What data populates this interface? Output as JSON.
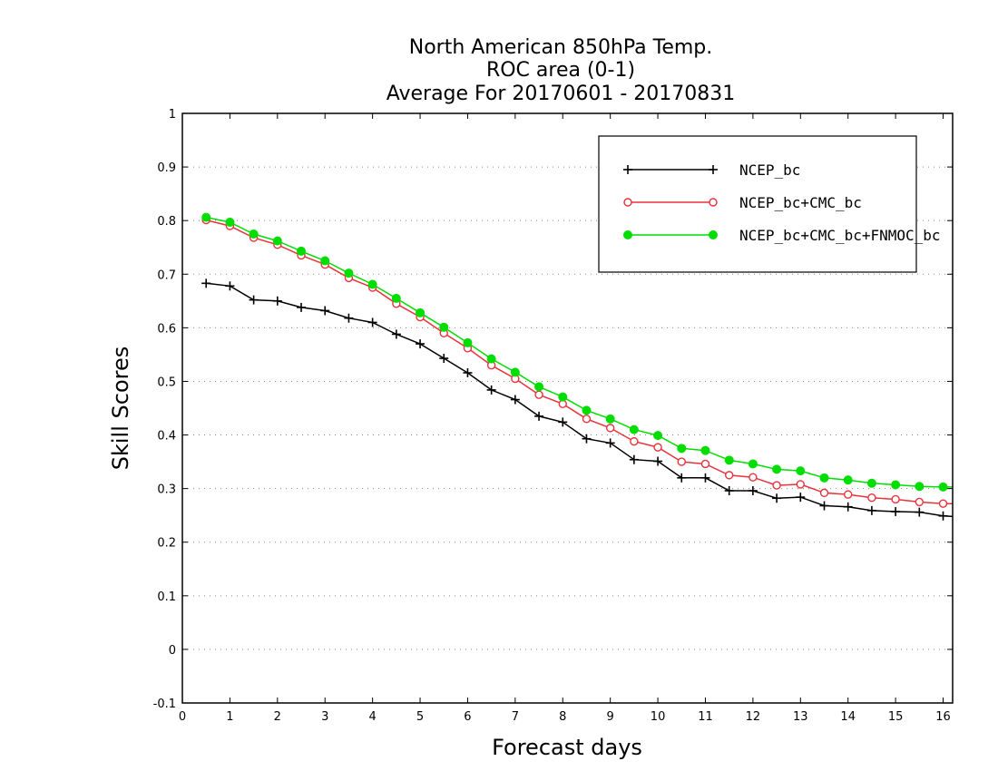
{
  "chart_data": {
    "type": "line",
    "title": [
      "North American 850hPa Temp.",
      "ROC area (0-1)",
      "Average For 20170601 - 20170831"
    ],
    "xlabel": "Forecast days",
    "ylabel": "Skill Scores",
    "xlim": [
      0,
      16.2
    ],
    "ylim": [
      -0.1,
      1
    ],
    "xticks": [
      0,
      1,
      2,
      3,
      4,
      5,
      6,
      7,
      8,
      9,
      10,
      11,
      12,
      13,
      14,
      15,
      16
    ],
    "yticks": [
      -0.1,
      0,
      0.1,
      0.2,
      0.3,
      0.4,
      0.5,
      0.6,
      0.7,
      0.8,
      0.9,
      1
    ],
    "ytick_labels": [
      "-0.1",
      "0",
      "0.1",
      "0.2",
      "0.3",
      "0.4",
      "0.5",
      "0.6",
      "0.7",
      "0.8",
      "0.9",
      "1"
    ],
    "grid": "horizontal dotted",
    "legend_position": "top-right",
    "x": [
      0.5,
      1,
      1.5,
      2,
      2.5,
      3,
      3.5,
      4,
      4.5,
      5,
      5.5,
      6,
      6.5,
      7,
      7.5,
      8,
      8.5,
      9,
      9.5,
      10,
      10.5,
      11,
      11.5,
      12,
      12.5,
      13,
      13.5,
      14,
      14.5,
      15,
      15.5,
      16,
      16.2
    ],
    "series": [
      {
        "name": "NCEP_bc",
        "color": "#000000",
        "marker": "plus",
        "values": [
          0.683,
          0.678,
          0.652,
          0.65,
          0.638,
          0.632,
          0.618,
          0.61,
          0.588,
          0.57,
          0.543,
          0.516,
          0.484,
          0.466,
          0.435,
          0.424,
          0.393,
          0.385,
          0.354,
          0.351,
          0.32,
          0.32,
          0.296,
          0.296,
          0.282,
          0.284,
          0.268,
          0.266,
          0.259,
          0.257,
          0.256,
          0.249,
          0.248
        ]
      },
      {
        "name": "NCEP_bc+CMC_bc",
        "color": "#e8323c",
        "marker": "open-circle",
        "values": [
          0.801,
          0.79,
          0.768,
          0.755,
          0.735,
          0.718,
          0.693,
          0.675,
          0.645,
          0.62,
          0.59,
          0.562,
          0.53,
          0.505,
          0.475,
          0.458,
          0.43,
          0.413,
          0.388,
          0.377,
          0.35,
          0.346,
          0.325,
          0.321,
          0.306,
          0.308,
          0.292,
          0.289,
          0.283,
          0.28,
          0.275,
          0.272,
          0.272
        ]
      },
      {
        "name": "NCEP_bc+CMC_bc+FNMOC_bc",
        "color": "#00dd00",
        "marker": "filled-circle",
        "values": [
          0.806,
          0.797,
          0.775,
          0.762,
          0.743,
          0.725,
          0.702,
          0.681,
          0.655,
          0.628,
          0.601,
          0.572,
          0.542,
          0.517,
          0.49,
          0.471,
          0.446,
          0.43,
          0.41,
          0.399,
          0.375,
          0.371,
          0.353,
          0.346,
          0.336,
          0.333,
          0.32,
          0.316,
          0.31,
          0.307,
          0.304,
          0.303,
          0.303
        ]
      }
    ]
  }
}
